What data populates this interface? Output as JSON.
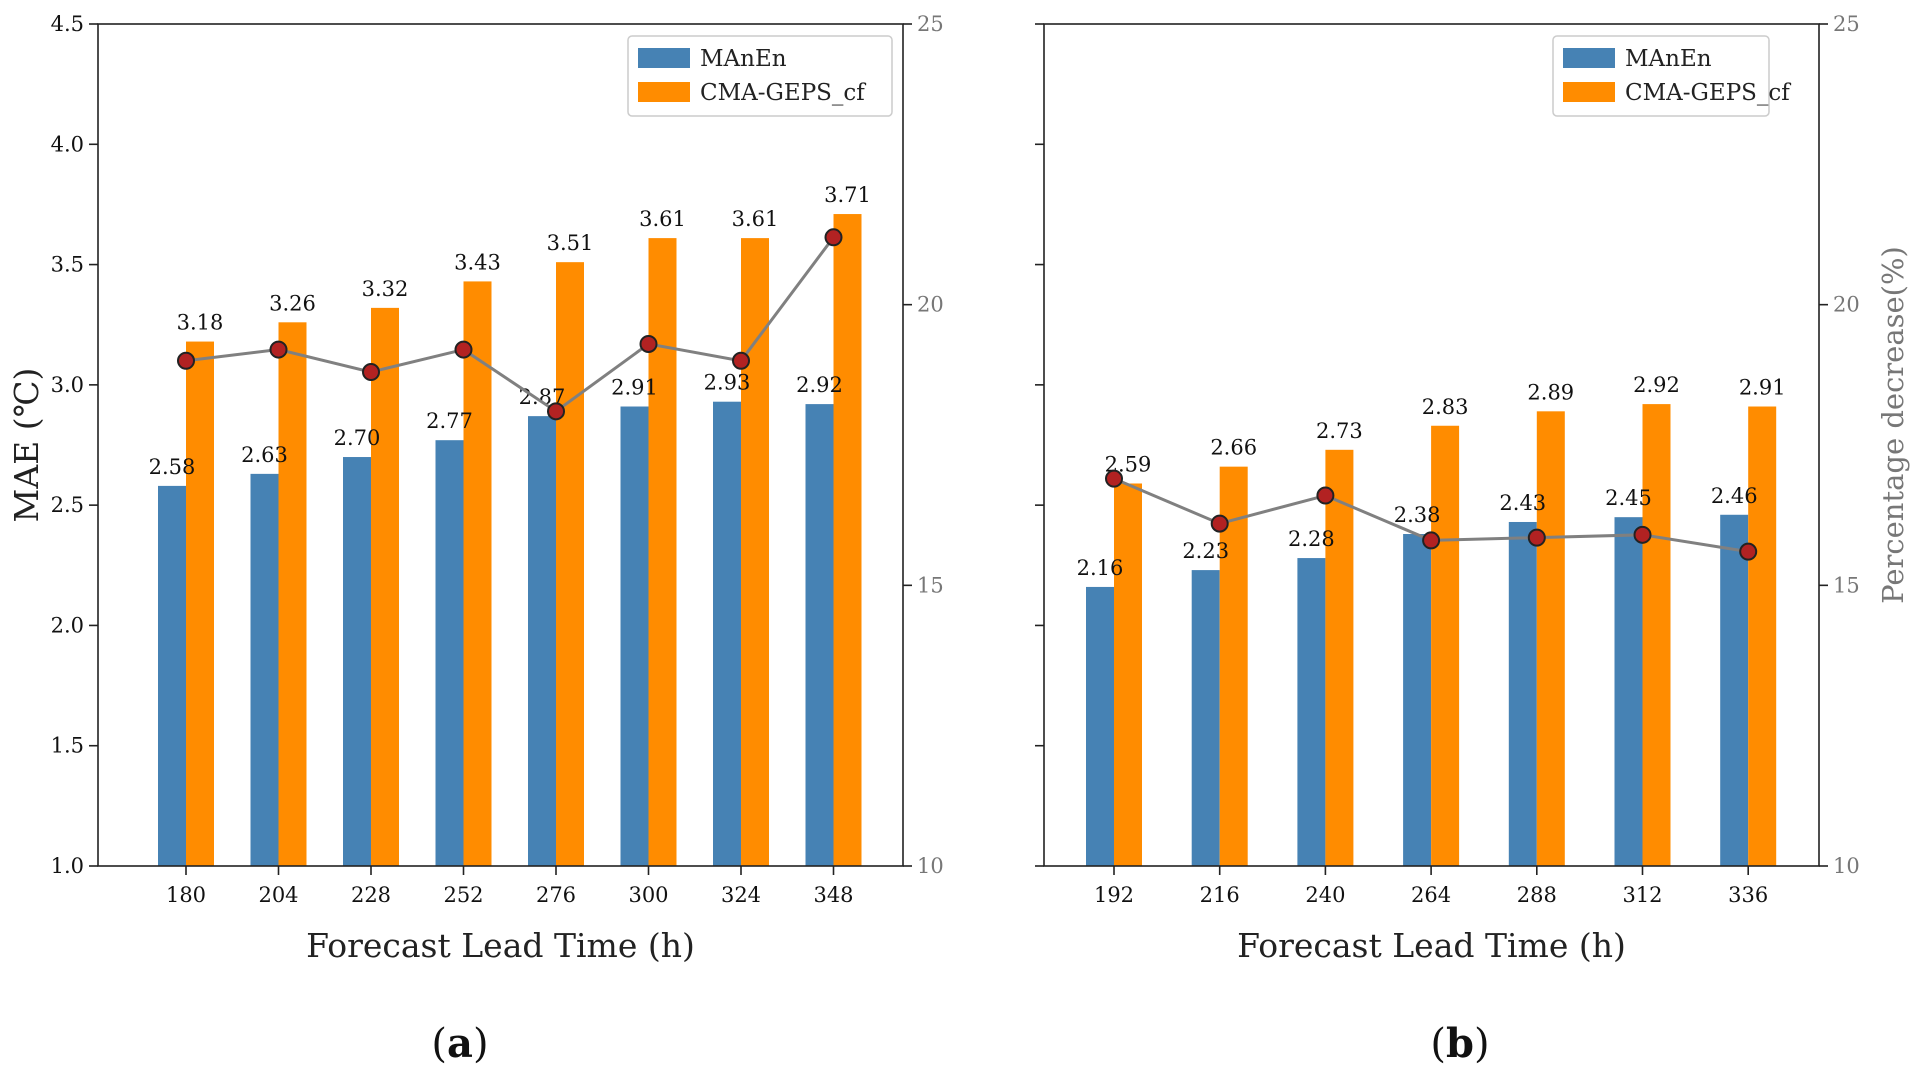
{
  "chart_data": [
    {
      "type": "bar",
      "panel_label": "a",
      "categories": [
        "180",
        "204",
        "228",
        "252",
        "276",
        "300",
        "324",
        "348"
      ],
      "series": [
        {
          "name": "MAnEn",
          "color": "#4682b4",
          "values": [
            2.58,
            2.63,
            2.7,
            2.77,
            2.87,
            2.91,
            2.93,
            2.92
          ],
          "labels": [
            "2.58",
            "2.63",
            "2.70",
            "2.77",
            "2.87",
            "2.91",
            "2.93",
            "2.92"
          ]
        },
        {
          "name": "CMA-GEPS_cf",
          "color": "#ff8c00",
          "values": [
            3.18,
            3.26,
            3.32,
            3.43,
            3.51,
            3.61,
            3.61,
            3.71
          ],
          "labels": [
            "3.18",
            "3.26",
            "3.32",
            "3.43",
            "3.51",
            "3.61",
            "3.61",
            "3.71"
          ]
        }
      ],
      "line_series": {
        "name": "Percentage decrease",
        "axis": "right",
        "line_color": "#808080",
        "marker_color": "#b22222",
        "values": [
          19.0,
          19.2,
          18.8,
          19.2,
          18.1,
          19.3,
          19.0,
          21.2
        ]
      },
      "xlabel": "Forecast Lead Time (h)",
      "ylabel": "MAE (℃)",
      "ylabel_right": "",
      "ylim": [
        1.0,
        4.5
      ],
      "yticks": [
        "1.0",
        "1.5",
        "2.0",
        "2.5",
        "3.0",
        "3.5",
        "4.0",
        "4.5"
      ],
      "ylim_right": [
        10,
        25
      ],
      "yticks_right": [
        "10",
        "15",
        "20",
        "25"
      ],
      "legend_position": "top-right",
      "grid": false
    },
    {
      "type": "bar",
      "panel_label": "b",
      "categories": [
        "192",
        "216",
        "240",
        "264",
        "288",
        "312",
        "336"
      ],
      "series": [
        {
          "name": "MAnEn",
          "color": "#4682b4",
          "values": [
            2.16,
            2.23,
            2.28,
            2.38,
            2.43,
            2.45,
            2.46
          ],
          "labels": [
            "2.16",
            "2.23",
            "2.28",
            "2.38",
            "2.43",
            "2.45",
            "2.46"
          ]
        },
        {
          "name": "CMA-GEPS_cf",
          "color": "#ff8c00",
          "values": [
            2.59,
            2.66,
            2.73,
            2.83,
            2.89,
            2.92,
            2.91
          ],
          "labels": [
            "2.59",
            "2.66",
            "2.73",
            "2.83",
            "2.89",
            "2.92",
            "2.91"
          ]
        }
      ],
      "line_series": {
        "name": "Percentage decrease",
        "axis": "right",
        "line_color": "#808080",
        "marker_color": "#b22222",
        "values": [
          16.9,
          16.1,
          16.6,
          15.8,
          15.85,
          15.9,
          15.6
        ]
      },
      "xlabel": "Forecast Lead Time (h)",
      "ylabel": "",
      "ylabel_right": "Percentage decrease(%)",
      "ylim": [
        1.0,
        4.5
      ],
      "yticks": [],
      "ylim_right": [
        10,
        25
      ],
      "yticks_right": [
        "10",
        "15",
        "20",
        "25"
      ],
      "legend_position": "top-right",
      "grid": false
    }
  ]
}
